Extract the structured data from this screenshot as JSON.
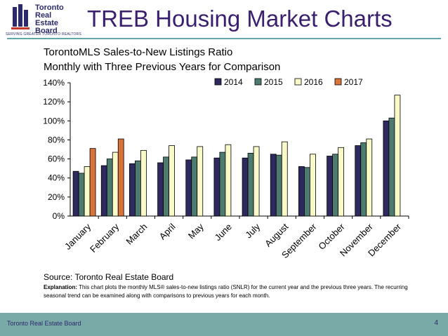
{
  "logo": {
    "name": "Toronto\nReal Estate\nBoard",
    "tagline": "SERVING GREATER TORONTO REALTORS"
  },
  "header": {
    "title": "TREB Housing Market Charts"
  },
  "chart_data": {
    "type": "bar",
    "title": "TorontoMLS Sales-to-New Listings Ratio",
    "subtitle": "Monthly with Three Previous Years for Comparison",
    "categories": [
      "January",
      "February",
      "March",
      "April",
      "May",
      "June",
      "July",
      "August",
      "September",
      "October",
      "November",
      "December"
    ],
    "series": [
      {
        "name": "2014",
        "color": "#2e2a5f",
        "values": [
          47,
          53,
          55,
          56,
          59,
          61,
          61,
          65,
          52,
          63,
          74,
          100
        ]
      },
      {
        "name": "2015",
        "color": "#4d7b70",
        "values": [
          45,
          60,
          58,
          62,
          62,
          67,
          66,
          64,
          51,
          65,
          77,
          103
        ]
      },
      {
        "name": "2016",
        "color": "#fafac8",
        "values": [
          52,
          67,
          69,
          74,
          73,
          75,
          73,
          78,
          65,
          72,
          81,
          127
        ]
      },
      {
        "name": "2017",
        "color": "#d9733a",
        "values": [
          71,
          81,
          null,
          null,
          null,
          null,
          null,
          null,
          null,
          null,
          null,
          null
        ]
      }
    ],
    "ylim": [
      0,
      140
    ],
    "yticks": [
      "0%",
      "20%",
      "40%",
      "60%",
      "80%",
      "100%",
      "120%",
      "140%"
    ],
    "legend_position": "top-right",
    "grid": false
  },
  "source": "Source: Toronto Real Estate  Board",
  "explanation": {
    "label": "Explanation:",
    "text": " This chart plots the monthly MLS® sales-to-new listings ratio (SNLR) for the current year and the previous three years. The recurring seasonal trend can be examined along with comparisons to previous years for each month."
  },
  "footer": {
    "left": "Toronto Real Estate Board",
    "page": "4"
  }
}
